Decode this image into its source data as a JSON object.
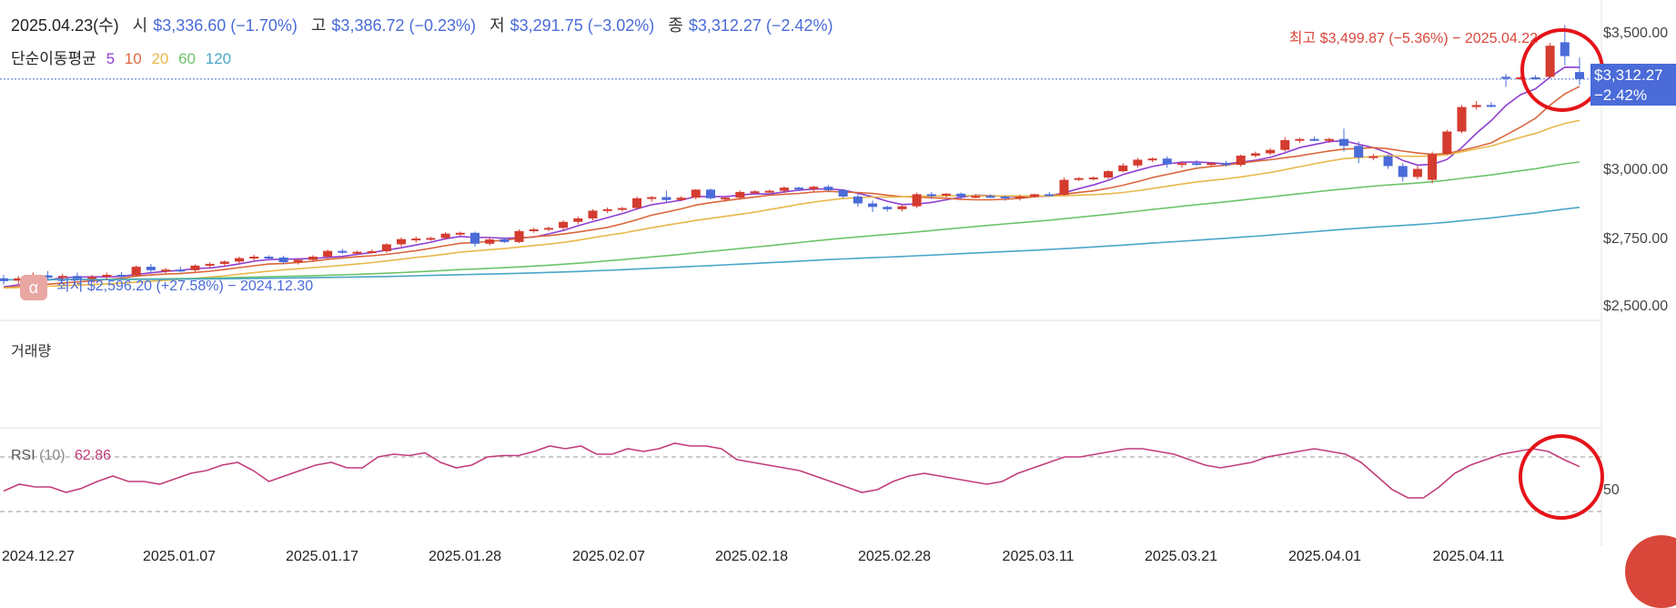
{
  "header": {
    "date": "2025.04.23(수)",
    "open_label": "시",
    "open_value": "$3,336.60 (−1.70%)",
    "high_label": "고",
    "high_value": "$3,386.72 (−0.23%)",
    "low_label": "저",
    "low_value": "$3,291.75 (−3.02%)",
    "close_label": "종",
    "close_value": "$3,312.27 (−2.42%)"
  },
  "ma_legend": {
    "title": "단순이동평균",
    "items": [
      {
        "label": "5",
        "color": "#8e3fd1"
      },
      {
        "label": "10",
        "color": "#d9663a"
      },
      {
        "label": "20",
        "color": "#e8b84a"
      },
      {
        "label": "60",
        "color": "#6cc46a"
      },
      {
        "label": "120",
        "color": "#4aa6c8"
      }
    ]
  },
  "annotations": {
    "high": "최고 $3,499.87 (−5.36%) − 2025.04.22",
    "low": "최저 $2,596.20 (+27.58%) − 2024.12.30"
  },
  "price_tag": {
    "price": "$3,312.27",
    "change": "−2.42%"
  },
  "panels": {
    "volume_label": "거래량",
    "rsi_label": "RSI",
    "rsi_param": "(10)",
    "rsi_value": "62.86"
  },
  "logo_glyph": "α",
  "colors": {
    "up": "#d43c30",
    "down": "#4a6bd8",
    "rsi": "#c13d7a",
    "circle": "#e5141a"
  },
  "chart_data": {
    "type": "candlestick",
    "y_axis": {
      "ticks": [
        "$2,500.00",
        "$2,750.00",
        "$3,000.00",
        "$3,250.00",
        "$3,500.00"
      ],
      "min": 2480,
      "max": 3530
    },
    "x_axis": {
      "ticks": [
        "2024.12.27",
        "2025.01.07",
        "2025.01.17",
        "2025.01.28",
        "2025.02.07",
        "2025.02.18",
        "2025.02.28",
        "2025.03.11",
        "2025.03.21",
        "2025.04.01",
        "2025.04.11"
      ]
    },
    "candles": [
      {
        "o": 2620,
        "h": 2632,
        "l": 2598,
        "c": 2610
      },
      {
        "o": 2612,
        "h": 2628,
        "l": 2596,
        "c": 2620
      },
      {
        "o": 2620,
        "h": 2640,
        "l": 2610,
        "c": 2632
      },
      {
        "o": 2630,
        "h": 2645,
        "l": 2615,
        "c": 2622
      },
      {
        "o": 2622,
        "h": 2636,
        "l": 2610,
        "c": 2628
      },
      {
        "o": 2628,
        "h": 2640,
        "l": 2615,
        "c": 2618
      },
      {
        "o": 2618,
        "h": 2632,
        "l": 2605,
        "c": 2625
      },
      {
        "o": 2625,
        "h": 2640,
        "l": 2615,
        "c": 2632
      },
      {
        "o": 2632,
        "h": 2642,
        "l": 2620,
        "c": 2630
      },
      {
        "o": 2630,
        "h": 2665,
        "l": 2625,
        "c": 2660
      },
      {
        "o": 2660,
        "h": 2670,
        "l": 2640,
        "c": 2648
      },
      {
        "o": 2648,
        "h": 2656,
        "l": 2638,
        "c": 2650
      },
      {
        "o": 2650,
        "h": 2660,
        "l": 2640,
        "c": 2648
      },
      {
        "o": 2648,
        "h": 2668,
        "l": 2642,
        "c": 2664
      },
      {
        "o": 2664,
        "h": 2675,
        "l": 2655,
        "c": 2670
      },
      {
        "o": 2670,
        "h": 2682,
        "l": 2660,
        "c": 2678
      },
      {
        "o": 2678,
        "h": 2695,
        "l": 2670,
        "c": 2690
      },
      {
        "o": 2690,
        "h": 2702,
        "l": 2680,
        "c": 2695
      },
      {
        "o": 2695,
        "h": 2700,
        "l": 2688,
        "c": 2692
      },
      {
        "o": 2692,
        "h": 2698,
        "l": 2670,
        "c": 2676
      },
      {
        "o": 2676,
        "h": 2688,
        "l": 2668,
        "c": 2684
      },
      {
        "o": 2684,
        "h": 2700,
        "l": 2678,
        "c": 2695
      },
      {
        "o": 2695,
        "h": 2720,
        "l": 2690,
        "c": 2715
      },
      {
        "o": 2715,
        "h": 2722,
        "l": 2705,
        "c": 2710
      },
      {
        "o": 2710,
        "h": 2716,
        "l": 2704,
        "c": 2712
      },
      {
        "o": 2712,
        "h": 2720,
        "l": 2706,
        "c": 2714
      },
      {
        "o": 2714,
        "h": 2742,
        "l": 2708,
        "c": 2738
      },
      {
        "o": 2738,
        "h": 2762,
        "l": 2730,
        "c": 2756
      },
      {
        "o": 2756,
        "h": 2765,
        "l": 2744,
        "c": 2758
      },
      {
        "o": 2758,
        "h": 2764,
        "l": 2750,
        "c": 2760
      },
      {
        "o": 2760,
        "h": 2780,
        "l": 2754,
        "c": 2775
      },
      {
        "o": 2775,
        "h": 2782,
        "l": 2768,
        "c": 2778
      },
      {
        "o": 2778,
        "h": 2782,
        "l": 2730,
        "c": 2740
      },
      {
        "o": 2740,
        "h": 2762,
        "l": 2734,
        "c": 2755
      },
      {
        "o": 2755,
        "h": 2762,
        "l": 2742,
        "c": 2746
      },
      {
        "o": 2746,
        "h": 2790,
        "l": 2742,
        "c": 2784
      },
      {
        "o": 2784,
        "h": 2796,
        "l": 2778,
        "c": 2790
      },
      {
        "o": 2790,
        "h": 2800,
        "l": 2784,
        "c": 2795
      },
      {
        "o": 2795,
        "h": 2822,
        "l": 2788,
        "c": 2816
      },
      {
        "o": 2816,
        "h": 2834,
        "l": 2808,
        "c": 2828
      },
      {
        "o": 2828,
        "h": 2860,
        "l": 2822,
        "c": 2855
      },
      {
        "o": 2855,
        "h": 2866,
        "l": 2846,
        "c": 2860
      },
      {
        "o": 2860,
        "h": 2868,
        "l": 2852,
        "c": 2864
      },
      {
        "o": 2864,
        "h": 2904,
        "l": 2858,
        "c": 2898
      },
      {
        "o": 2898,
        "h": 2906,
        "l": 2886,
        "c": 2902
      },
      {
        "o": 2902,
        "h": 2925,
        "l": 2884,
        "c": 2892
      },
      {
        "o": 2892,
        "h": 2905,
        "l": 2888,
        "c": 2900
      },
      {
        "o": 2900,
        "h": 2930,
        "l": 2894,
        "c": 2928
      },
      {
        "o": 2928,
        "h": 2932,
        "l": 2894,
        "c": 2898
      },
      {
        "o": 2898,
        "h": 2904,
        "l": 2886,
        "c": 2900
      },
      {
        "o": 2900,
        "h": 2925,
        "l": 2894,
        "c": 2920
      },
      {
        "o": 2920,
        "h": 2926,
        "l": 2914,
        "c": 2922
      },
      {
        "o": 2922,
        "h": 2928,
        "l": 2916,
        "c": 2924
      },
      {
        "o": 2924,
        "h": 2940,
        "l": 2916,
        "c": 2935
      },
      {
        "o": 2935,
        "h": 2938,
        "l": 2926,
        "c": 2930
      },
      {
        "o": 2930,
        "h": 2942,
        "l": 2920,
        "c": 2938
      },
      {
        "o": 2938,
        "h": 2944,
        "l": 2922,
        "c": 2926
      },
      {
        "o": 2926,
        "h": 2930,
        "l": 2898,
        "c": 2904
      },
      {
        "o": 2904,
        "h": 2912,
        "l": 2868,
        "c": 2880
      },
      {
        "o": 2880,
        "h": 2890,
        "l": 2850,
        "c": 2868
      },
      {
        "o": 2868,
        "h": 2872,
        "l": 2852,
        "c": 2860
      },
      {
        "o": 2860,
        "h": 2875,
        "l": 2852,
        "c": 2870
      },
      {
        "o": 2870,
        "h": 2918,
        "l": 2864,
        "c": 2912
      },
      {
        "o": 2912,
        "h": 2920,
        "l": 2896,
        "c": 2908
      },
      {
        "o": 2908,
        "h": 2916,
        "l": 2902,
        "c": 2914
      },
      {
        "o": 2914,
        "h": 2918,
        "l": 2896,
        "c": 2904
      },
      {
        "o": 2904,
        "h": 2912,
        "l": 2898,
        "c": 2906
      },
      {
        "o": 2906,
        "h": 2912,
        "l": 2900,
        "c": 2904
      },
      {
        "o": 2904,
        "h": 2908,
        "l": 2890,
        "c": 2898
      },
      {
        "o": 2898,
        "h": 2910,
        "l": 2890,
        "c": 2904
      },
      {
        "o": 2904,
        "h": 2914,
        "l": 2900,
        "c": 2912
      },
      {
        "o": 2912,
        "h": 2920,
        "l": 2905,
        "c": 2910
      },
      {
        "o": 2910,
        "h": 2970,
        "l": 2906,
        "c": 2962
      },
      {
        "o": 2962,
        "h": 2972,
        "l": 2958,
        "c": 2968
      },
      {
        "o": 2968,
        "h": 2974,
        "l": 2960,
        "c": 2970
      },
      {
        "o": 2970,
        "h": 2996,
        "l": 2964,
        "c": 2992
      },
      {
        "o": 2992,
        "h": 3020,
        "l": 2988,
        "c": 3012
      },
      {
        "o": 3012,
        "h": 3038,
        "l": 3004,
        "c": 3032
      },
      {
        "o": 3032,
        "h": 3040,
        "l": 3024,
        "c": 3036
      },
      {
        "o": 3036,
        "h": 3044,
        "l": 3004,
        "c": 3016
      },
      {
        "o": 3016,
        "h": 3026,
        "l": 3004,
        "c": 3020
      },
      {
        "o": 3020,
        "h": 3030,
        "l": 3012,
        "c": 3016
      },
      {
        "o": 3016,
        "h": 3024,
        "l": 3010,
        "c": 3020
      },
      {
        "o": 3020,
        "h": 3028,
        "l": 3008,
        "c": 3014
      },
      {
        "o": 3014,
        "h": 3050,
        "l": 3008,
        "c": 3046
      },
      {
        "o": 3046,
        "h": 3060,
        "l": 3040,
        "c": 3054
      },
      {
        "o": 3054,
        "h": 3072,
        "l": 3048,
        "c": 3066
      },
      {
        "o": 3066,
        "h": 3110,
        "l": 3060,
        "c": 3100
      },
      {
        "o": 3100,
        "h": 3108,
        "l": 3090,
        "c": 3104
      },
      {
        "o": 3104,
        "h": 3112,
        "l": 3096,
        "c": 3100
      },
      {
        "o": 3100,
        "h": 3108,
        "l": 3090,
        "c": 3104
      },
      {
        "o": 3104,
        "h": 3140,
        "l": 3060,
        "c": 3080
      },
      {
        "o": 3080,
        "h": 3095,
        "l": 3020,
        "c": 3040
      },
      {
        "o": 3040,
        "h": 3052,
        "l": 3030,
        "c": 3044
      },
      {
        "o": 3044,
        "h": 3050,
        "l": 3000,
        "c": 3010
      },
      {
        "o": 3010,
        "h": 3020,
        "l": 2956,
        "c": 2972
      },
      {
        "o": 2972,
        "h": 3010,
        "l": 2964,
        "c": 3000
      },
      {
        "o": 2962,
        "h": 3060,
        "l": 2950,
        "c": 3052
      },
      {
        "o": 3052,
        "h": 3136,
        "l": 3048,
        "c": 3130
      },
      {
        "o": 3130,
        "h": 3222,
        "l": 3124,
        "c": 3215
      },
      {
        "o": 3215,
        "h": 3236,
        "l": 3206,
        "c": 3222
      },
      {
        "o": 3222,
        "h": 3232,
        "l": 3214,
        "c": 3220
      },
      {
        "o": 3320,
        "h": 3330,
        "l": 3285,
        "c": 3315
      },
      {
        "o": 3315,
        "h": 3322,
        "l": 3308,
        "c": 3318
      },
      {
        "o": 3318,
        "h": 3326,
        "l": 3310,
        "c": 3315
      },
      {
        "o": 3320,
        "h": 3438,
        "l": 3316,
        "c": 3428
      },
      {
        "o": 3440,
        "h": 3499.87,
        "l": 3360,
        "c": 3392
      },
      {
        "o": 3336.6,
        "h": 3386.72,
        "l": 3291.75,
        "c": 3312.27
      }
    ],
    "rsi": {
      "period": 10,
      "value": 62.86,
      "upper": 70,
      "lower": 30,
      "label_tick": "50",
      "values": [
        45,
        50,
        48,
        48,
        44,
        47,
        52,
        56,
        52,
        52,
        50,
        54,
        58,
        60,
        64,
        66,
        60,
        52,
        56,
        60,
        64,
        66,
        62,
        62,
        70,
        72,
        71,
        73,
        66,
        62,
        64,
        70,
        71,
        71,
        74,
        78,
        76,
        78,
        72,
        72,
        76,
        74,
        76,
        80,
        78,
        78,
        76,
        68,
        66,
        64,
        62,
        60,
        56,
        52,
        48,
        44,
        46,
        52,
        56,
        58,
        56,
        54,
        52,
        50,
        52,
        58,
        62,
        66,
        70,
        70,
        72,
        74,
        76,
        76,
        74,
        72,
        68,
        64,
        62,
        64,
        66,
        70,
        72,
        74,
        76,
        74,
        72,
        66,
        56,
        46,
        40,
        40,
        48,
        58,
        64,
        68,
        72,
        74,
        76,
        74,
        68,
        62.86
      ]
    }
  }
}
